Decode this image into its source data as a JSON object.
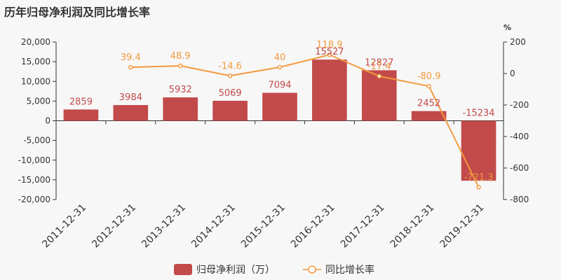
{
  "chart_data": {
    "type": "bar",
    "title": "历年归母净利润及同比增长率",
    "categories": [
      "2011-12-31",
      "2012-12-31",
      "2013-12-31",
      "2014-12-31",
      "2015-12-31",
      "2016-12-31",
      "2017-12-31",
      "2018-12-31",
      "2019-12-31"
    ],
    "series": [
      {
        "name": "归母净利润（万）",
        "type": "bar",
        "axis": "left",
        "color": "#c24a4a",
        "values": [
          2859,
          3984,
          5932,
          5069,
          7094,
          15527,
          12827,
          2452,
          -15234
        ]
      },
      {
        "name": "同比增长率",
        "type": "line",
        "axis": "right",
        "color": "#f29a3f",
        "values": [
          null,
          39.4,
          48.9,
          -14.6,
          40,
          118.9,
          -17.4,
          -80.9,
          -721.3
        ]
      }
    ],
    "y_left": {
      "ylim": [
        -20000,
        20000
      ],
      "ticks": [
        20000,
        15000,
        10000,
        5000,
        0,
        -5000,
        -10000,
        -15000,
        -20000
      ],
      "tick_labels": [
        "20,000",
        "15,000",
        "10,000",
        "5,000",
        "0",
        "-5,000",
        "-10,000",
        "-15,000",
        "-20,000"
      ]
    },
    "y_right": {
      "ylim": [
        -800,
        200
      ],
      "unit": "%",
      "ticks": [
        200,
        0,
        -200,
        -400,
        -600,
        -800
      ],
      "tick_labels": [
        "200",
        "0",
        "-200",
        "-400",
        "-600",
        "-800"
      ]
    },
    "bar_labels": [
      "2859",
      "3984",
      "5932",
      "5069",
      "7094",
      "15527",
      "12827",
      "2452",
      "-15234"
    ],
    "line_labels": [
      null,
      "39.4",
      "48.9",
      "-14.6",
      "40",
      "118.9",
      "-17.4",
      "-80.9",
      "-721.3"
    ],
    "legend_position": "bottom",
    "grid": false
  }
}
